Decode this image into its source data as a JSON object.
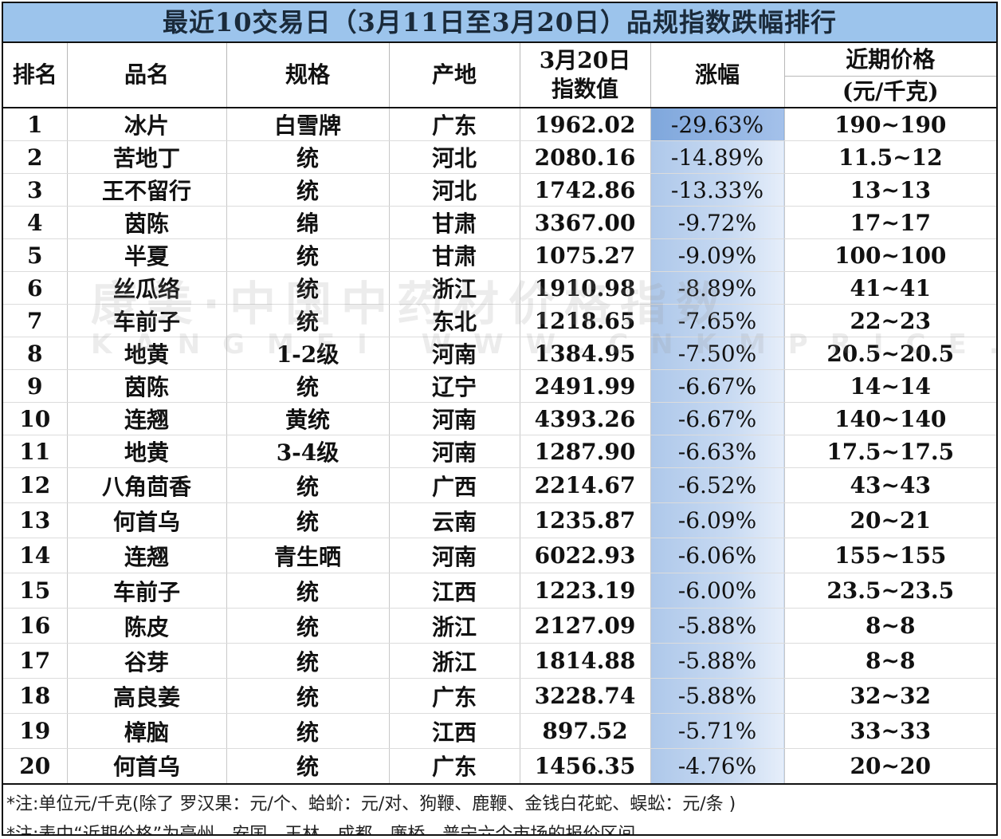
{
  "title": "最近10交易日（3月11日至3月20日）品规指数跌幅排行",
  "headers": {
    "rank": "排名",
    "name": "品名",
    "spec": "规格",
    "origin": "产地",
    "index_line1": "3月20日",
    "index_line2": "指数值",
    "change": "涨幅",
    "price_line1": "近期价格",
    "price_line2": "(元/千克)"
  },
  "rows": [
    {
      "rank": "1",
      "name": "冰片",
      "spec": "白雪牌",
      "origin": "广东",
      "index": "1962.02",
      "change": "-29.63%",
      "price": "190~190"
    },
    {
      "rank": "2",
      "name": "苦地丁",
      "spec": "统",
      "origin": "河北",
      "index": "2080.16",
      "change": "-14.89%",
      "price": "11.5~12"
    },
    {
      "rank": "3",
      "name": "王不留行",
      "spec": "统",
      "origin": "河北",
      "index": "1742.86",
      "change": "-13.33%",
      "price": "13~13"
    },
    {
      "rank": "4",
      "name": "茵陈",
      "spec": "绵",
      "origin": "甘肃",
      "index": "3367.00",
      "change": "-9.72%",
      "price": "17~17"
    },
    {
      "rank": "5",
      "name": "半夏",
      "spec": "统",
      "origin": "甘肃",
      "index": "1075.27",
      "change": "-9.09%",
      "price": "100~100"
    },
    {
      "rank": "6",
      "name": "丝瓜络",
      "spec": "统",
      "origin": "浙江",
      "index": "1910.98",
      "change": "-8.89%",
      "price": "41~41"
    },
    {
      "rank": "7",
      "name": "车前子",
      "spec": "统",
      "origin": "东北",
      "index": "1218.65",
      "change": "-7.65%",
      "price": "22~23"
    },
    {
      "rank": "8",
      "name": "地黄",
      "spec": "1-2级",
      "origin": "河南",
      "index": "1384.95",
      "change": "-7.50%",
      "price": "20.5~20.5"
    },
    {
      "rank": "9",
      "name": "茵陈",
      "spec": "统",
      "origin": "辽宁",
      "index": "2491.99",
      "change": "-6.67%",
      "price": "14~14"
    },
    {
      "rank": "10",
      "name": "连翘",
      "spec": "黄统",
      "origin": "河南",
      "index": "4393.26",
      "change": "-6.67%",
      "price": "140~140"
    },
    {
      "rank": "11",
      "name": "地黄",
      "spec": "3-4级",
      "origin": "河南",
      "index": "1287.90",
      "change": "-6.63%",
      "price": "17.5~17.5"
    },
    {
      "rank": "12",
      "name": "八角茴香",
      "spec": "统",
      "origin": "广西",
      "index": "2214.67",
      "change": "-6.52%",
      "price": "43~43"
    },
    {
      "rank": "13",
      "name": "何首乌",
      "spec": "统",
      "origin": "云南",
      "index": "1235.87",
      "change": "-6.09%",
      "price": "20~21"
    },
    {
      "rank": "14",
      "name": "连翘",
      "spec": "青生晒",
      "origin": "河南",
      "index": "6022.93",
      "change": "-6.06%",
      "price": "155~155"
    },
    {
      "rank": "15",
      "name": "车前子",
      "spec": "统",
      "origin": "江西",
      "index": "1223.19",
      "change": "-6.00%",
      "price": "23.5~23.5"
    },
    {
      "rank": "16",
      "name": "陈皮",
      "spec": "统",
      "origin": "浙江",
      "index": "2127.09",
      "change": "-5.88%",
      "price": "8~8"
    },
    {
      "rank": "17",
      "name": "谷芽",
      "spec": "统",
      "origin": "浙江",
      "index": "1814.88",
      "change": "-5.88%",
      "price": "8~8"
    },
    {
      "rank": "18",
      "name": "高良姜",
      "spec": "统",
      "origin": "广东",
      "index": "3228.74",
      "change": "-5.88%",
      "price": "32~32"
    },
    {
      "rank": "19",
      "name": "樟脑",
      "spec": "统",
      "origin": "江西",
      "index": "897.52",
      "change": "-5.71%",
      "price": "33~33"
    },
    {
      "rank": "20",
      "name": "何首乌",
      "spec": "统",
      "origin": "广东",
      "index": "1456.35",
      "change": "-4.76%",
      "price": "20~20"
    }
  ],
  "notes": [
    "*注:单位元/千克(除了 罗汉果：元/个、蛤蚧：元/对、狗鞭、鹿鞭、金钱白花蛇、蜈蚣：元/条 )",
    "*注:表中“近期价格”为亳州、安国、玉林、成都、廉桥、普宁六个市场的报价区间。"
  ],
  "watermark": {
    "text": "康美·中国中药材价格指数",
    "url": "KANGMEI WWW.CNKMPRICE.COM"
  }
}
